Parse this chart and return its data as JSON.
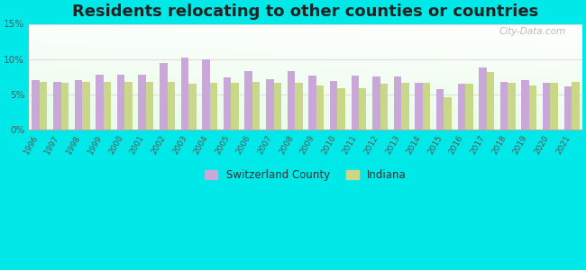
{
  "title": "Residents relocating to other counties or countries",
  "years": [
    1996,
    1997,
    1998,
    1999,
    2000,
    2001,
    2002,
    2003,
    2004,
    2005,
    2006,
    2007,
    2008,
    2009,
    2010,
    2011,
    2012,
    2013,
    2014,
    2015,
    2016,
    2017,
    2018,
    2019,
    2020,
    2021
  ],
  "switzerland_county": [
    7.0,
    6.7,
    7.0,
    7.8,
    7.8,
    7.8,
    9.4,
    10.2,
    9.9,
    7.4,
    8.3,
    7.1,
    8.3,
    7.7,
    6.9,
    7.6,
    7.5,
    7.5,
    6.6,
    5.7,
    6.5,
    8.8,
    6.7,
    7.0,
    6.6,
    6.1
  ],
  "indiana": [
    6.7,
    6.6,
    6.8,
    6.7,
    6.7,
    6.7,
    6.7,
    6.5,
    6.6,
    6.6,
    6.7,
    6.6,
    6.6,
    6.2,
    5.9,
    5.9,
    6.5,
    6.6,
    6.6,
    4.6,
    6.5,
    8.2,
    6.6,
    6.2,
    6.6,
    6.7
  ],
  "switzerland_color": "#c9a8d9",
  "indiana_color": "#c8d888",
  "background_outer": "#00e8e8",
  "ylim": [
    0,
    15
  ],
  "yticks": [
    0,
    5,
    10,
    15
  ],
  "ytick_labels": [
    "0%",
    "5%",
    "10%",
    "15%"
  ],
  "title_fontsize": 13,
  "watermark": "City-Data.com",
  "legend_switzerland": "Switzerland County",
  "legend_indiana": "Indiana"
}
